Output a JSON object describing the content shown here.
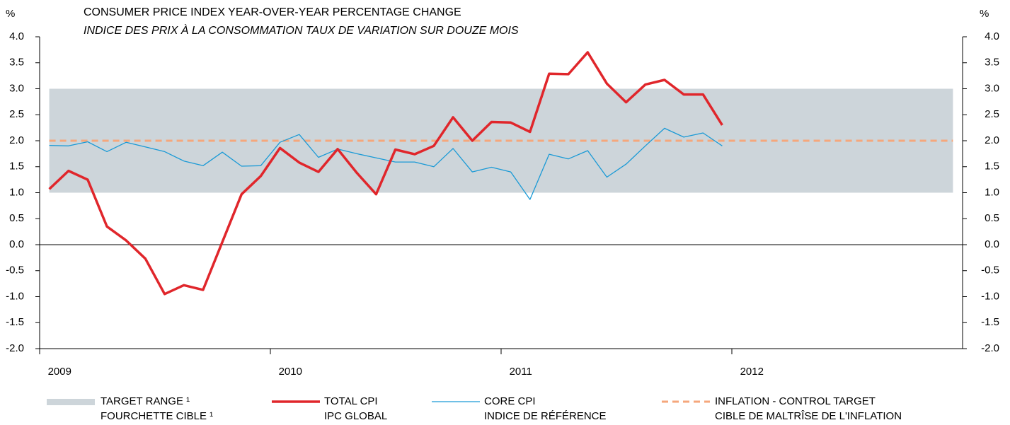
{
  "chart_data": {
    "type": "line",
    "title": "CONSUMER PRICE INDEX YEAR-OVER-YEAR PERCENTAGE CHANGE",
    "subtitle": "INDICE DES PRIX À LA CONSOMMATION TAUX DE VARIATION SUR DOUZE MOIS",
    "y_label": "%",
    "y2_label": "%",
    "categories": [
      "2009",
      null,
      null,
      null,
      null,
      null,
      null,
      null,
      null,
      null,
      null,
      null,
      "2010",
      null,
      null,
      null,
      null,
      null,
      null,
      null,
      null,
      null,
      null,
      null,
      "2011",
      null,
      null,
      null,
      null,
      null,
      null,
      null,
      null,
      null,
      null,
      null,
      "2012",
      null,
      null,
      null,
      null,
      null,
      null,
      null,
      null,
      null,
      null,
      null
    ],
    "ylim": [
      -2,
      4
    ],
    "yticks": [
      {
        "value": 4,
        "label": "4.0"
      },
      {
        "value": 3.5,
        "label": "3.5"
      },
      {
        "value": 3,
        "label": "3.0"
      },
      {
        "value": 2.5,
        "label": "2.5"
      },
      {
        "value": 2,
        "label": "2.0"
      },
      {
        "value": 1.5,
        "label": "1.5"
      },
      {
        "value": 1,
        "label": "1.0"
      },
      {
        "value": 0.5,
        "label": "0.5"
      },
      {
        "value": 0,
        "label": "0.0"
      },
      {
        "value": -0.5,
        "label": "-0.5"
      },
      {
        "value": -1,
        "label": "-1.0"
      },
      {
        "value": -1.5,
        "label": "-1.5"
      },
      {
        "value": -2,
        "label": "-2.0"
      }
    ],
    "y2lim": [
      -2,
      4
    ],
    "y2ticks": [
      {
        "value": 4,
        "label": "4.0"
      },
      {
        "value": 3.5,
        "label": "3.5"
      },
      {
        "value": 3,
        "label": "3.0"
      },
      {
        "value": 2.5,
        "label": "2.5"
      },
      {
        "value": 2,
        "label": "2.0"
      },
      {
        "value": 1.5,
        "label": "1.5"
      },
      {
        "value": 1,
        "label": "1.0"
      },
      {
        "value": 0.5,
        "label": "0.5"
      },
      {
        "value": 0,
        "label": "0.0"
      },
      {
        "value": -0.5,
        "label": "-0.5"
      },
      {
        "value": -1,
        "label": "-1.0"
      },
      {
        "value": -1.5,
        "label": "-1.5"
      },
      {
        "value": -2,
        "label": "-2.0"
      }
    ],
    "target_range": {
      "name": "TARGET RANGE ¹",
      "name_fr": "FOURCHETTE CIBLE ¹",
      "low": 1,
      "high": 3,
      "color": "#cdd5da"
    },
    "series": [
      {
        "name": "TOTAL CPI",
        "name_fr": "IPC GLOBAL",
        "color": "#e0262b",
        "values": [
          1.07,
          1.42,
          1.25,
          0.35,
          0.08,
          -0.27,
          -0.95,
          -0.78,
          -0.87,
          0.05,
          0.97,
          1.32,
          1.86,
          1.58,
          1.4,
          1.84,
          1.38,
          0.97,
          1.83,
          1.74,
          1.9,
          2.45,
          2.0,
          2.36,
          2.35,
          2.17,
          3.29,
          3.28,
          3.7,
          3.1,
          2.74,
          3.08,
          3.17,
          2.89,
          2.89,
          2.3,
          null,
          null,
          null,
          null,
          null,
          null,
          null,
          null,
          null,
          null,
          null,
          null
        ]
      },
      {
        "name": "CORE CPI",
        "name_fr": "INDICE DE RÉFÉRENCE",
        "color": "#1a9ad6",
        "values": [
          1.91,
          1.9,
          1.98,
          1.79,
          1.97,
          1.88,
          1.79,
          1.61,
          1.52,
          1.78,
          1.51,
          1.52,
          1.97,
          2.12,
          1.68,
          1.84,
          1.75,
          1.67,
          1.59,
          1.59,
          1.5,
          1.85,
          1.4,
          1.49,
          1.4,
          0.87,
          1.74,
          1.65,
          1.81,
          1.3,
          1.55,
          1.9,
          2.24,
          2.07,
          2.15,
          1.9,
          null,
          null,
          null,
          null,
          null,
          null,
          null,
          null,
          null,
          null,
          null,
          null
        ]
      }
    ],
    "control_target": {
      "name": "INFLATION - CONTROL TARGET",
      "name_fr": "CIBLE DE MALTRÎSE DE L'INFLATION",
      "value": 2,
      "color": "#f5a77c"
    }
  }
}
